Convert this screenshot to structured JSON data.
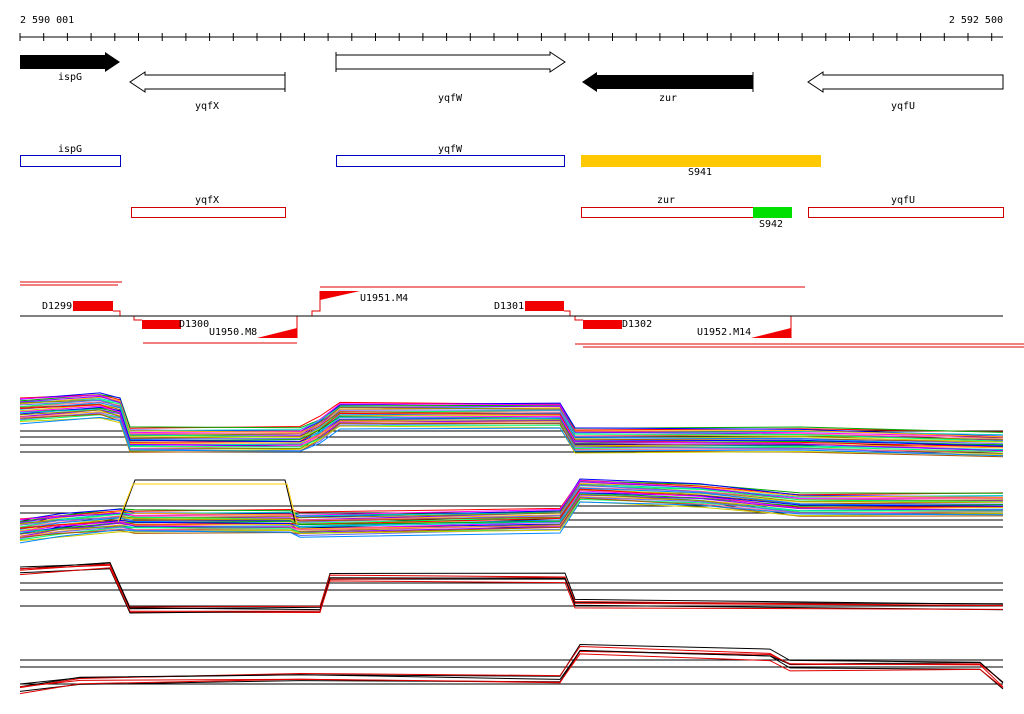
{
  "ruler": {
    "start": "2 590 001",
    "end": "2 592 500"
  },
  "genes": {
    "ispG": "ispG",
    "yqfX": "yqfX",
    "yqfW": "yqfW",
    "zur": "zur",
    "yqfU": "yqfU"
  },
  "regions": {
    "ispG": "ispG",
    "yqfW": "yqfW",
    "S941": "S941",
    "yqfX": "yqfX",
    "zur": "zur",
    "S942": "S942",
    "yqfU": "yqfU"
  },
  "segments": {
    "D1299": "D1299",
    "D1300": "D1300",
    "U1950": "U1950.M8",
    "U1951": "U1951.M4",
    "D1301": "D1301",
    "D1302": "D1302",
    "U1952": "U1952.M14"
  }
}
